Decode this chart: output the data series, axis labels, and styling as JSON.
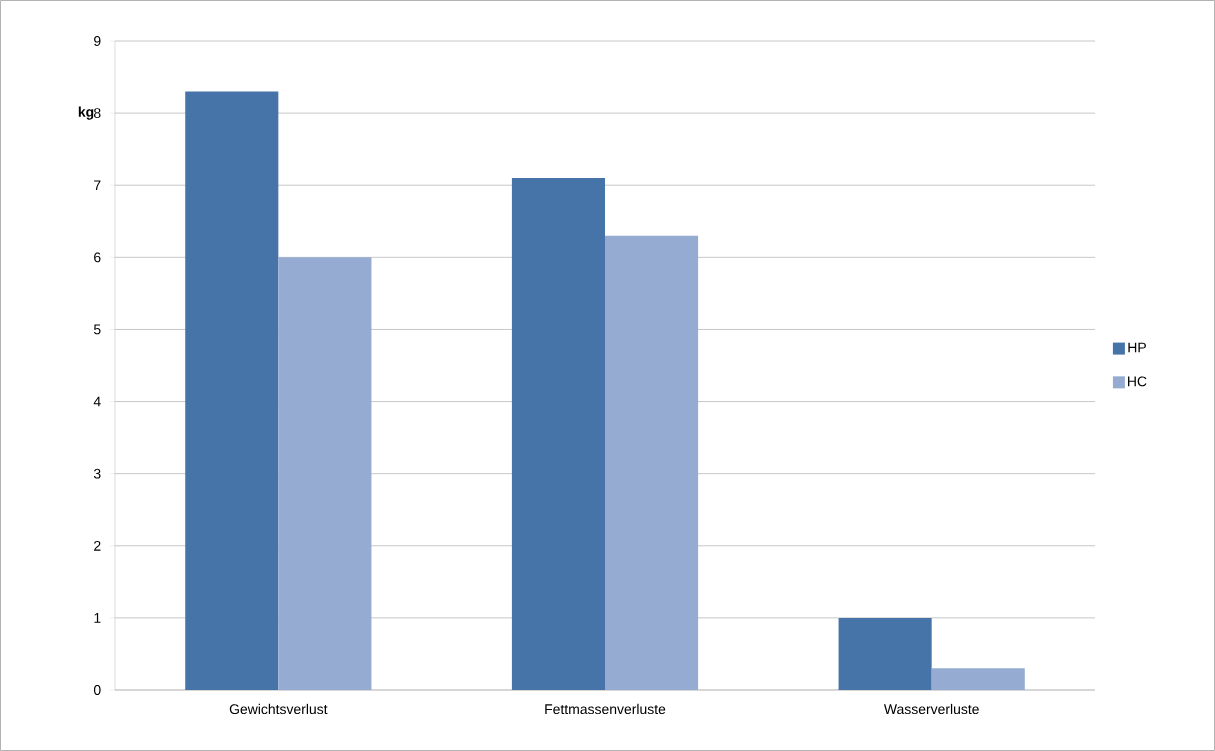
{
  "chart_data": {
    "type": "bar",
    "ylabel": "kg",
    "categories": [
      "Gewichtsverlust",
      "Fettmassenverluste",
      "Wasserverluste"
    ],
    "series": [
      {
        "name": "HP",
        "color": "#4674a8",
        "values": [
          8.3,
          7.1,
          1.0
        ]
      },
      {
        "name": "HC",
        "color": "#95abd2",
        "values": [
          6.0,
          6.3,
          0.3
        ]
      }
    ],
    "ylim": [
      0,
      9
    ],
    "yticks": [
      0,
      1,
      2,
      3,
      4,
      5,
      6,
      7,
      8,
      9
    ],
    "grid": "y",
    "legend": "right"
  }
}
